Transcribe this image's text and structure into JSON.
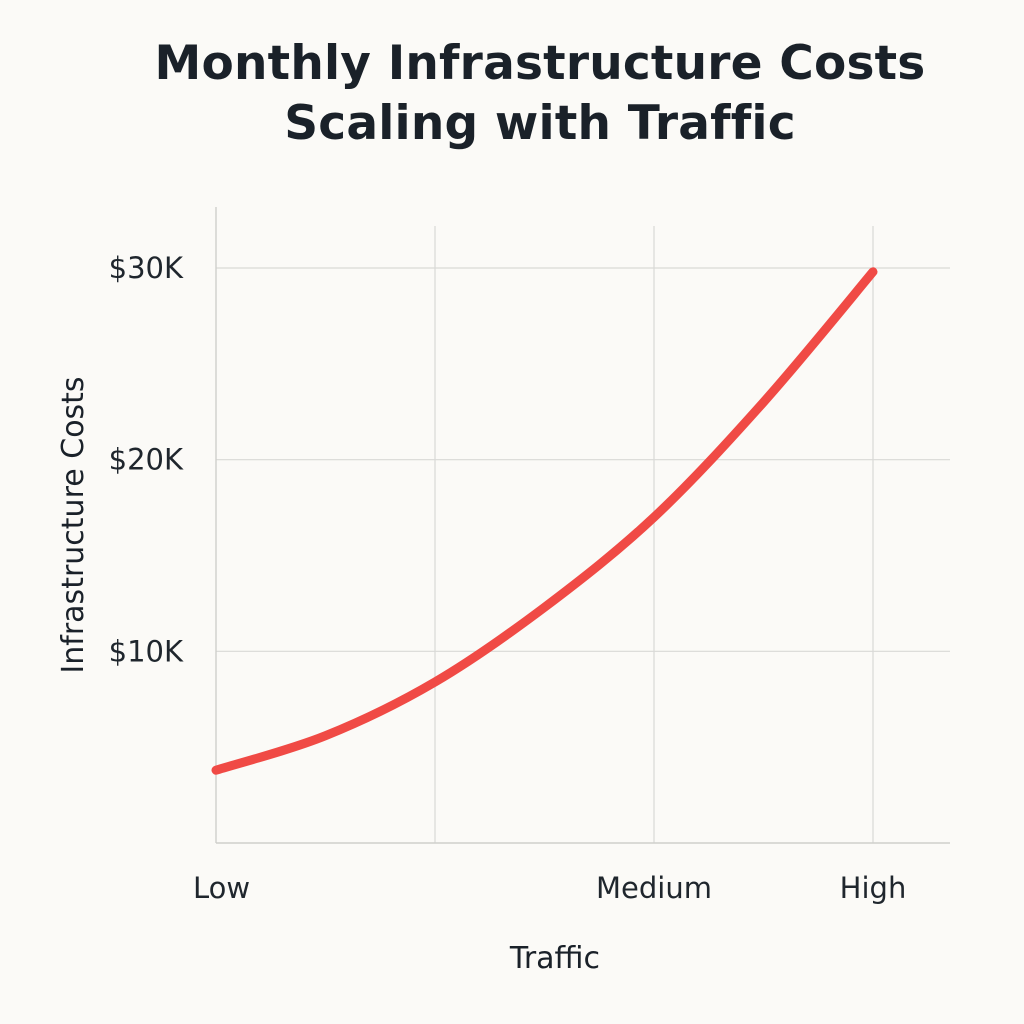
{
  "chart_data": {
    "type": "line",
    "title_lines": [
      "Monthly Infrastructure Costs",
      "Scaling with Traffic"
    ],
    "xlabel": "Traffic",
    "ylabel": "Infrastructure Costs",
    "x_ticks": [
      {
        "label": "Low",
        "x": 0
      },
      {
        "label": "",
        "x": 1
      },
      {
        "label": "Medium",
        "x": 2
      },
      {
        "label": "High",
        "x": 3
      }
    ],
    "y_ticks": [
      {
        "label": "$10K",
        "value": 10000
      },
      {
        "label": "$20K",
        "value": 20000
      },
      {
        "label": "$30K",
        "value": 30000
      }
    ],
    "xlim": [
      0,
      3.35
    ],
    "ylim": [
      0,
      33000
    ],
    "grid": true,
    "series": [
      {
        "color": "#f04a45",
        "points": [
          {
            "x": 0,
            "y": 3800
          },
          {
            "x": 0.5,
            "y": 5600
          },
          {
            "x": 1,
            "y": 8400
          },
          {
            "x": 1.5,
            "y": 12300
          },
          {
            "x": 2,
            "y": 17000
          },
          {
            "x": 2.5,
            "y": 23000
          },
          {
            "x": 3,
            "y": 29800
          }
        ]
      }
    ]
  }
}
